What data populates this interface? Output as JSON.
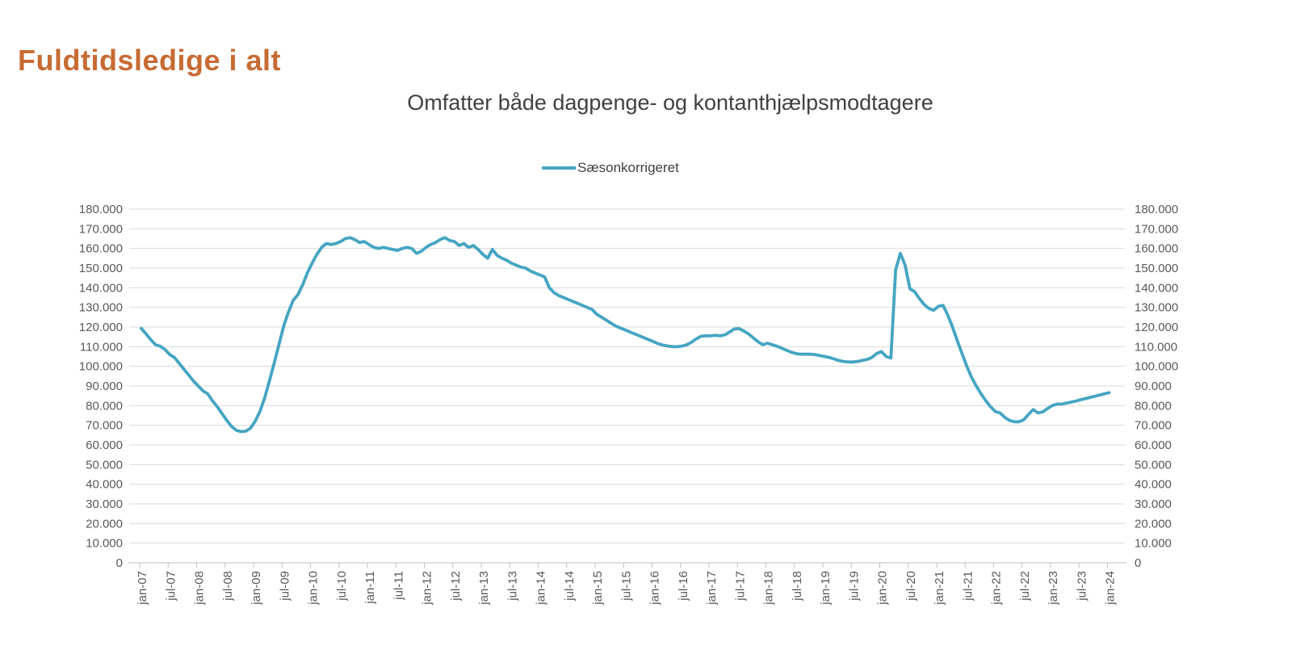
{
  "page": {
    "title": "Fuldtidsledige i alt",
    "title_color": "#C76B33"
  },
  "chart_data": {
    "type": "line",
    "title": "Omfatter både dagpenge- og kontanthjælpsmodtagere",
    "title_color": "#404040",
    "legend_position": "top-center",
    "grid": "horizontal",
    "grid_color": "#D9D9D9",
    "axis_line_color": "#BFBFBF",
    "axis_label_color": "#595959",
    "ylim": [
      0,
      180000
    ],
    "ytick_step": 10000,
    "y_tick_labels": [
      "180.000",
      "170.000",
      "160.000",
      "150.000",
      "140.000",
      "130.000",
      "120.000",
      "110.000",
      "100.000",
      "90.000",
      "80.000",
      "70.000",
      "60.000",
      "50.000",
      "40.000",
      "30.000",
      "20.000",
      "10.000",
      "0"
    ],
    "y_axis_sides": "both",
    "x_frequency": "monthly",
    "x_start": "jan-07",
    "x_end": "jan-24",
    "x_tick_labels": [
      "jan-07",
      "jul-07",
      "jan-08",
      "jul-08",
      "jan-09",
      "jul-09",
      "jan-10",
      "jul-10",
      "jan-11",
      "jul-11",
      "jan-12",
      "jul-12",
      "jan-13",
      "jul-13",
      "jan-14",
      "jul-14",
      "jan-15",
      "jul-15",
      "jan-16",
      "jul-16",
      "jan-17",
      "jul-17",
      "jan-18",
      "jul-18",
      "jan-19",
      "jul-19",
      "jan-20",
      "jul-20",
      "jan-21",
      "jul-21",
      "jan-22",
      "jul-22",
      "jan-23",
      "jul-23",
      "jan-24"
    ],
    "series": [
      {
        "name": "Sæsonkorrigeret",
        "color": "#45A5C2",
        "values": [
          119300,
          116500,
          113500,
          111000,
          110200,
          108500,
          106000,
          104500,
          101500,
          98500,
          95500,
          92500,
          90000,
          87500,
          86000,
          82500,
          79500,
          76000,
          72500,
          69500,
          67500,
          66800,
          67000,
          68500,
          72000,
          77000,
          84000,
          92500,
          101500,
          111000,
          120500,
          127500,
          133500,
          136500,
          141500,
          147500,
          152500,
          157000,
          160500,
          162500,
          162000,
          162500,
          163500,
          165000,
          165500,
          164500,
          163000,
          163500,
          162000,
          160500,
          160000,
          160500,
          160000,
          159500,
          159000,
          160000,
          160500,
          160000,
          157500,
          158500,
          160500,
          162000,
          163000,
          164500,
          165500,
          164000,
          163500,
          161500,
          162500,
          160500,
          161500,
          159500,
          157000,
          155000,
          159500,
          156500,
          155000,
          154000,
          152500,
          151500,
          150500,
          150000,
          148500,
          147500,
          146500,
          145500,
          140000,
          137500,
          136000,
          135000,
          134000,
          133000,
          132000,
          131000,
          130000,
          129000,
          126500,
          125000,
          123500,
          122000,
          120500,
          119500,
          118500,
          117500,
          116500,
          115500,
          114500,
          113500,
          112500,
          111500,
          110800,
          110300,
          110000,
          110000,
          110300,
          111000,
          112300,
          114000,
          115300,
          115500,
          115500,
          115800,
          115500,
          116000,
          117500,
          119000,
          119200,
          118000,
          116500,
          114500,
          112500,
          111000,
          111800,
          111000,
          110200,
          109200,
          108200,
          107200,
          106500,
          106200,
          106200,
          106200,
          106000,
          105500,
          105000,
          104500,
          103800,
          103000,
          102500,
          102200,
          102200,
          102500,
          103000,
          103500,
          104500,
          106500,
          107500,
          105000,
          104200,
          149000,
          157500,
          151500,
          139500,
          138000,
          134500,
          131500,
          129500,
          128500,
          130500,
          131000,
          126000,
          120000,
          113000,
          106500,
          100000,
          94500,
          90000,
          86000,
          82500,
          79500,
          77000,
          76300,
          74000,
          72500,
          71800,
          71800,
          72800,
          75500,
          78000,
          76300,
          76800,
          78500,
          80000,
          80800,
          80800,
          81300,
          81800,
          82300,
          83000,
          83600,
          84200,
          84800,
          85400,
          86000,
          86600
        ]
      }
    ]
  }
}
